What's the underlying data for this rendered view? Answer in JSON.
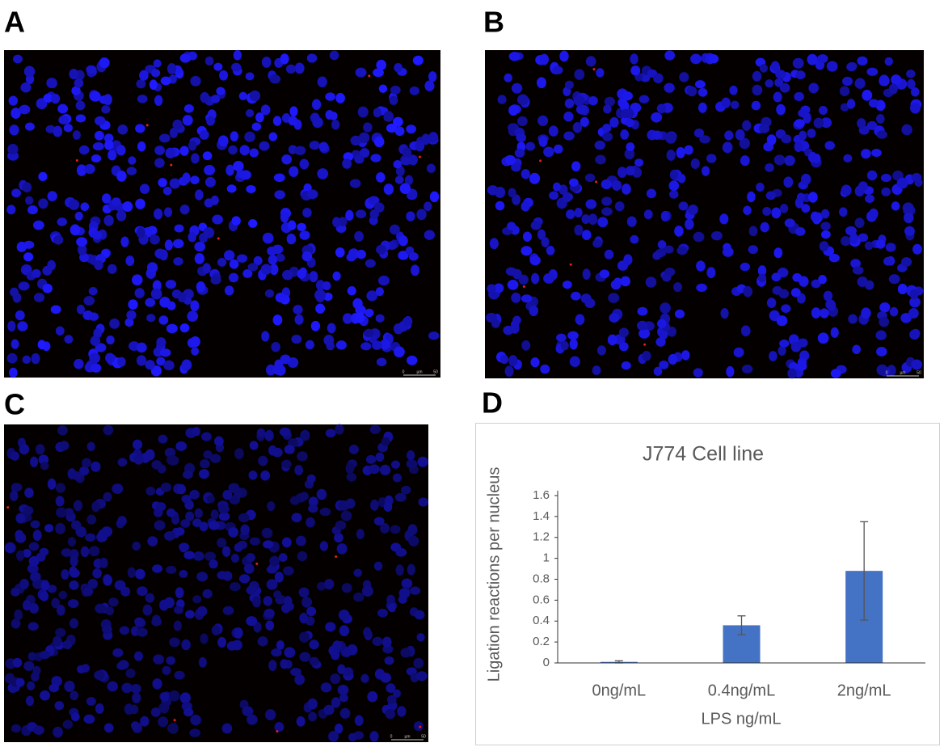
{
  "panels": [
    {
      "label": "A",
      "scale_bar": {
        "start": "0",
        "unit": "µm",
        "end": "50"
      }
    },
    {
      "label": "B",
      "scale_bar": {
        "start": "0",
        "unit": "µm",
        "end": "50"
      }
    },
    {
      "label": "C",
      "scale_bar": {
        "start": "0",
        "unit": "µm",
        "end": "50"
      }
    },
    {
      "label": "D"
    }
  ],
  "chart_data": {
    "type": "bar",
    "title": "J774 Cell line",
    "x_label": "LPS ng/mL",
    "y_label": "Ligation reactions per nucleus",
    "categories": [
      "0ng/mL",
      "0.4ng/mL",
      "2ng/mL"
    ],
    "values": [
      0.01,
      0.36,
      0.88
    ],
    "errors": [
      0.01,
      0.09,
      0.47
    ],
    "color": "#4472c4",
    "ylim": [
      0,
      1.6
    ],
    "yticks": [
      0,
      0.2,
      0.4,
      0.6,
      0.8,
      1,
      1.2,
      1.4,
      1.6
    ]
  }
}
